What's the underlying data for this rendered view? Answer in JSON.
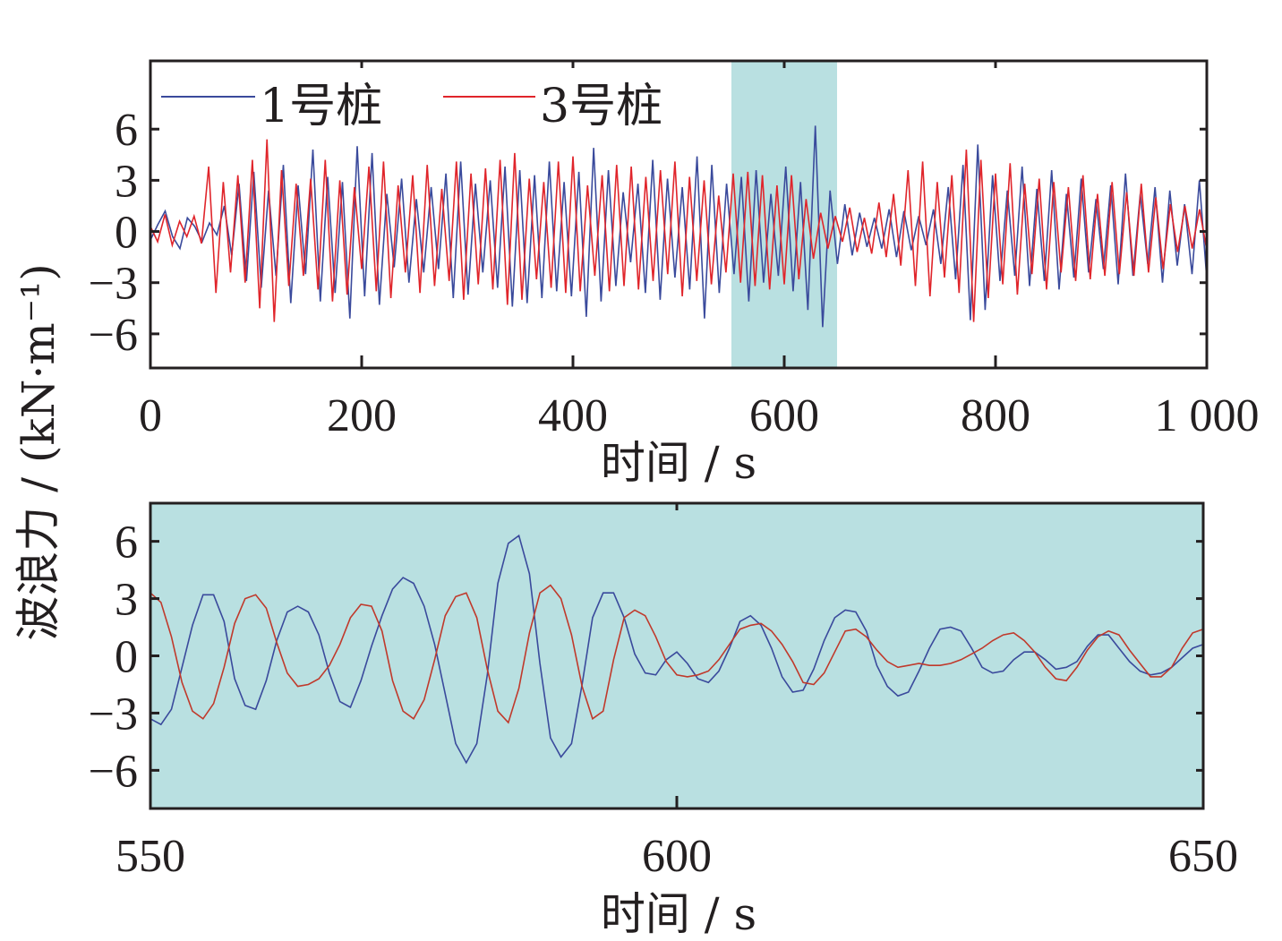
{
  "colors": {
    "series1": "#3a4a9c",
    "series2": "#e0252b",
    "series2_zoom": "#c0392b",
    "highlight": "#b9e0e1",
    "frame": "#231f20"
  },
  "chart_data": [
    {
      "type": "line",
      "xlabel": "时间 / s",
      "ylabel": "波浪力 / (kN·m⁻¹)",
      "xlim": [
        0,
        1000
      ],
      "ylim": [
        -8,
        10
      ],
      "xticks": [
        0,
        200,
        400,
        600,
        800,
        1000
      ],
      "xtick_labels": [
        "0",
        "200",
        "400",
        "600",
        "800",
        "1 000"
      ],
      "yticks": [
        -6,
        -3,
        0,
        3,
        6
      ],
      "ytick_labels": [
        "−6",
        "−3",
        "0",
        "3",
        "6"
      ],
      "highlight_x": [
        550,
        650
      ],
      "legend": "top-left",
      "series": [
        {
          "name": "1号桩",
          "x_range": [
            0,
            1000
          ],
          "values": [
            -0.5,
            0.4,
            1.2,
            -0.3,
            -1.0,
            0.8,
            0.3,
            -0.6,
            0.5,
            -0.2,
            1.5,
            -1.4,
            2.8,
            -2.9,
            3.5,
            -3.3,
            2.4,
            -2.6,
            3.9,
            -4.2,
            2.7,
            -2.5,
            4.8,
            -4.1,
            3.2,
            -3.6,
            2.9,
            -5.1,
            5.0,
            -3.8,
            4.6,
            -4.3,
            2.2,
            -2.1,
            3.1,
            -3.0,
            1.9,
            -2.4,
            2.6,
            -2.2,
            3.4,
            -3.9,
            4.1,
            -3.7,
            2.8,
            -2.4,
            3.0,
            -3.3,
            3.8,
            -4.4,
            3.6,
            -4.2,
            3.3,
            -3.9,
            4.1,
            -3.5,
            2.9,
            -3.8,
            3.5,
            -5.0,
            4.9,
            -4.1,
            3.6,
            -3.2,
            2.3,
            -1.8,
            2.8,
            -3.6,
            4.2,
            -4.0,
            3.1,
            -2.7,
            2.6,
            -3.4,
            4.4,
            -5.1,
            3.9,
            -3.6,
            2.8,
            -2.5,
            3.2,
            -4.1,
            3.6,
            -3.0,
            2.2,
            -2.6,
            3.8,
            -3.5,
            2.9,
            -4.6,
            6.2,
            -5.6,
            2.4,
            -1.9,
            1.6,
            -1.4,
            1.1,
            -0.9,
            0.8,
            -1.0,
            1.3,
            -1.5,
            1.2,
            -1.1,
            0.9,
            -0.8,
            1.3,
            -1.9,
            2.6,
            -2.8,
            3.9,
            -5.2,
            5.1,
            -4.6,
            3.3,
            -2.9,
            2.4,
            -2.6,
            3.8,
            -3.2,
            2.5,
            -2.9,
            3.6,
            -3.4,
            2.2,
            -2.7,
            3.1,
            -2.4,
            1.9,
            -2.2,
            2.7,
            -3.1,
            3.4,
            -2.6,
            2.2,
            -1.9,
            2.6,
            -3.0,
            2.4,
            -2.0,
            1.6,
            -2.5,
            3.0,
            -2.8
          ]
        },
        {
          "name": "3号桩",
          "x_range": [
            0,
            1000
          ],
          "values": [
            0.3,
            -0.6,
            1.0,
            -0.8,
            0.6,
            -0.3,
            0.9,
            -0.7,
            3.8,
            -3.6,
            2.9,
            -2.4,
            3.3,
            -3.0,
            4.2,
            -4.5,
            5.4,
            -5.3,
            3.6,
            -3.2,
            2.8,
            -2.6,
            3.1,
            -3.4,
            4.2,
            -4.1,
            3.0,
            -3.7,
            2.6,
            -2.2,
            3.8,
            -3.5,
            4.1,
            -3.9,
            2.7,
            -2.4,
            3.3,
            -3.6,
            3.9,
            -3.2,
            2.5,
            -2.9,
            4.1,
            -4.0,
            3.4,
            -3.1,
            3.7,
            -3.4,
            4.2,
            -4.3,
            4.6,
            -4.0,
            3.1,
            -2.8,
            2.9,
            -3.3,
            4.1,
            -3.6,
            4.4,
            -3.5,
            2.7,
            -2.6,
            3.3,
            -3.5,
            3.9,
            -3.2,
            3.8,
            -3.4,
            3.2,
            -2.9,
            3.6,
            -2.5,
            4.1,
            -3.8,
            3.2,
            -2.9,
            3.0,
            -3.1,
            2.1,
            -2.4,
            3.4,
            -3.0,
            3.5,
            -3.2,
            3.3,
            -3.4,
            2.7,
            -3.1,
            3.3,
            -2.8,
            1.9,
            -1.6,
            1.1,
            -1.0,
            0.9,
            -0.6,
            1.4,
            -1.2,
            0.8,
            -1.3,
            1.7,
            -1.5,
            2.2,
            -2.0,
            3.6,
            -3.2,
            4.1,
            -3.8,
            2.9,
            -2.7,
            3.3,
            -3.6,
            4.8,
            -5.3,
            4.2,
            -3.9,
            3.4,
            -3.1,
            4.0,
            -3.7,
            2.8,
            -2.5,
            3.1,
            -3.4,
            2.9,
            -2.4,
            2.6,
            -2.9,
            3.3,
            -2.8,
            2.2,
            -2.6,
            2.9,
            -2.5,
            2.3,
            -2.6,
            2.8,
            -2.4,
            2.0,
            -2.2,
            1.6,
            -1.2,
            1.5,
            -1.0,
            1.3,
            -1.1
          ]
        }
      ]
    },
    {
      "type": "line",
      "xlabel": "时间 / s",
      "ylabel": "波浪力 / (kN·m⁻¹)",
      "xlim": [
        550,
        650
      ],
      "ylim": [
        -8,
        8
      ],
      "xticks": [
        550,
        600,
        650
      ],
      "xtick_labels": [
        "550",
        "600",
        "650"
      ],
      "yticks": [
        -6,
        -3,
        0,
        3,
        6
      ],
      "ytick_labels": [
        "−6",
        "−3",
        "0",
        "3",
        "6"
      ],
      "background": "highlight",
      "series": [
        {
          "name": "1号桩",
          "x": [
            550,
            551,
            552,
            553,
            554,
            555,
            556,
            557,
            558,
            559,
            560,
            561,
            562,
            563,
            564,
            565,
            566,
            567,
            568,
            569,
            570,
            571,
            572,
            573,
            574,
            575,
            576,
            577,
            578,
            579,
            580,
            581,
            582,
            583,
            584,
            585,
            586,
            587,
            588,
            589,
            590,
            591,
            592,
            593,
            594,
            595,
            596,
            597,
            598,
            599,
            600,
            601,
            602,
            603,
            604,
            605,
            606,
            607,
            608,
            609,
            610,
            611,
            612,
            613,
            614,
            615,
            616,
            617,
            618,
            619,
            620,
            621,
            622,
            623,
            624,
            625,
            626,
            627,
            628,
            629,
            630,
            631,
            632,
            633,
            634,
            635,
            636,
            637,
            638,
            639,
            640,
            641,
            642,
            643,
            644,
            645,
            646,
            647,
            648,
            649,
            650
          ],
          "values": [
            -3.3,
            -3.6,
            -2.8,
            -0.6,
            1.6,
            3.2,
            3.2,
            1.8,
            -1.2,
            -2.6,
            -2.8,
            -1.3,
            0.8,
            2.3,
            2.6,
            2.3,
            1.1,
            -0.9,
            -2.4,
            -2.7,
            -1.3,
            0.5,
            2.1,
            3.5,
            4.1,
            3.8,
            2.6,
            0.6,
            -2.0,
            -4.6,
            -5.6,
            -4.6,
            -1.0,
            3.8,
            5.9,
            6.3,
            4.3,
            -0.4,
            -4.3,
            -5.3,
            -4.6,
            -1.5,
            2.0,
            3.3,
            3.3,
            2.0,
            0.1,
            -0.9,
            -1.0,
            -0.2,
            0.2,
            -0.4,
            -1.2,
            -1.4,
            -0.8,
            0.4,
            1.8,
            2.1,
            1.6,
            0.4,
            -1.1,
            -1.9,
            -1.8,
            -0.7,
            0.8,
            2.0,
            2.4,
            2.3,
            1.3,
            -0.5,
            -1.6,
            -2.1,
            -1.9,
            -0.8,
            0.4,
            1.4,
            1.5,
            1.3,
            0.4,
            -0.6,
            -0.9,
            -0.8,
            -0.2,
            0.2,
            0.2,
            -0.2,
            -0.7,
            -0.6,
            -0.3,
            0.5,
            1.1,
            1.1,
            0.4,
            -0.3,
            -0.8,
            -1.0,
            -0.9,
            -0.6,
            -0.1,
            0.4,
            0.6
          ]
        },
        {
          "name": "3号桩",
          "x": [
            550,
            551,
            552,
            553,
            554,
            555,
            556,
            557,
            558,
            559,
            560,
            561,
            562,
            563,
            564,
            565,
            566,
            567,
            568,
            569,
            570,
            571,
            572,
            573,
            574,
            575,
            576,
            577,
            578,
            579,
            580,
            581,
            582,
            583,
            584,
            585,
            586,
            587,
            588,
            589,
            590,
            591,
            592,
            593,
            594,
            595,
            596,
            597,
            598,
            599,
            600,
            601,
            602,
            603,
            604,
            605,
            606,
            607,
            608,
            609,
            610,
            611,
            612,
            613,
            614,
            615,
            616,
            617,
            618,
            619,
            620,
            621,
            622,
            623,
            624,
            625,
            626,
            627,
            628,
            629,
            630,
            631,
            632,
            633,
            634,
            635,
            636,
            637,
            638,
            639,
            640,
            641,
            642,
            643,
            644,
            645,
            646,
            647,
            648,
            649,
            650
          ],
          "values": [
            3.3,
            2.8,
            1.0,
            -1.4,
            -2.9,
            -3.3,
            -2.5,
            -0.6,
            1.7,
            3.0,
            3.2,
            2.5,
            0.7,
            -0.9,
            -1.6,
            -1.5,
            -1.2,
            -0.5,
            0.6,
            2.0,
            2.7,
            2.6,
            1.3,
            -1.3,
            -2.9,
            -3.3,
            -2.3,
            -0.2,
            2.1,
            3.1,
            3.3,
            2.0,
            -0.7,
            -2.9,
            -3.5,
            -1.7,
            1.2,
            3.3,
            3.7,
            3.0,
            1.1,
            -1.6,
            -3.3,
            -2.9,
            -0.2,
            2.0,
            2.4,
            2.1,
            1.0,
            -0.3,
            -1.0,
            -1.1,
            -1.0,
            -0.8,
            -0.2,
            0.6,
            1.4,
            1.6,
            1.7,
            1.3,
            0.6,
            -0.3,
            -1.4,
            -1.5,
            -0.9,
            0.2,
            1.3,
            1.4,
            1.0,
            0.3,
            -0.3,
            -0.6,
            -0.5,
            -0.4,
            -0.5,
            -0.5,
            -0.4,
            -0.2,
            0.1,
            0.4,
            0.8,
            1.1,
            1.2,
            0.8,
            0.2,
            -0.6,
            -1.2,
            -1.3,
            -0.6,
            0.3,
            1.0,
            1.3,
            1.1,
            0.3,
            -0.4,
            -1.1,
            -1.1,
            -0.6,
            0.4,
            1.2,
            1.4
          ]
        }
      ]
    }
  ]
}
